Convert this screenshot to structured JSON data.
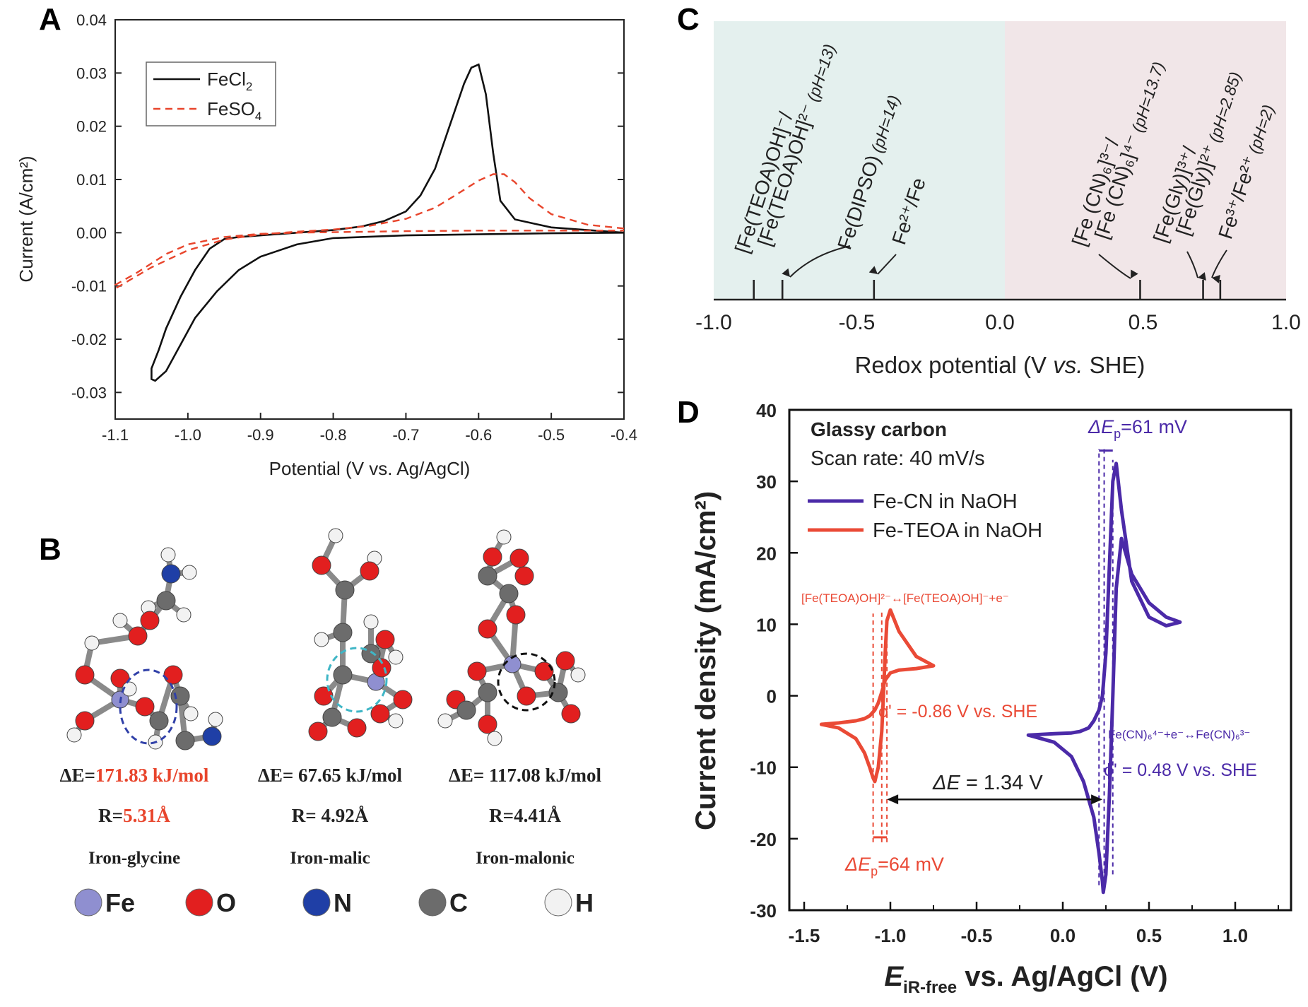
{
  "panels": {
    "a": "A",
    "b": "B",
    "c": "C",
    "d": "D"
  },
  "colors": {
    "black": "#111111",
    "red_dash": "#e8452c",
    "red": "#ea4a36",
    "purple": "#4b2aa8",
    "teal_bg": "#e4f0ee",
    "pink_bg": "#f1e6e8"
  },
  "chart_data": [
    {
      "id": "A",
      "type": "line",
      "xlabel": "Potential (V vs. Ag/AgCl)",
      "ylabel": "Current (A/cm²)",
      "xlim": [
        -1.1,
        -0.4
      ],
      "ylim": [
        -0.035,
        0.04
      ],
      "xticks": [
        "-1.1",
        "-1.0",
        "-0.9",
        "-0.8",
        "-0.7",
        "-0.6",
        "-0.5",
        "-0.4"
      ],
      "yticks": [
        "0.04",
        "0.03",
        "0.02",
        "0.01",
        "0.00",
        "-0.01",
        "-0.02",
        "-0.03"
      ],
      "legend_position": "top-left",
      "series": [
        {
          "name": "FeCl",
          "name_sub": "2",
          "style": "solid",
          "x": [
            -0.4,
            -0.45,
            -0.5,
            -0.55,
            -0.57,
            -0.58,
            -0.59,
            -0.6,
            -0.61,
            -0.62,
            -0.64,
            -0.66,
            -0.68,
            -0.7,
            -0.73,
            -0.76,
            -0.8,
            -0.85,
            -0.9,
            -0.93,
            -0.95,
            -0.97,
            -0.99,
            -1.01,
            -1.03,
            -1.04,
            -1.05,
            -1.05,
            -1.045,
            -1.03,
            -1.01,
            -0.99,
            -0.96,
            -0.93,
            -0.9,
            -0.85,
            -0.8,
            -0.7,
            -0.6,
            -0.5,
            -0.4
          ],
          "y": [
            0.0,
            0.0005,
            0.001,
            0.0025,
            0.006,
            0.015,
            0.026,
            0.0316,
            0.031,
            0.028,
            0.02,
            0.012,
            0.007,
            0.004,
            0.0022,
            0.0012,
            0.0005,
            0.0,
            -0.0005,
            -0.0008,
            -0.0012,
            -0.003,
            -0.007,
            -0.012,
            -0.018,
            -0.022,
            -0.0255,
            -0.0275,
            -0.0278,
            -0.026,
            -0.021,
            -0.016,
            -0.011,
            -0.007,
            -0.0045,
            -0.0022,
            -0.001,
            -0.0005,
            -0.0003,
            -0.0001,
            0.0
          ]
        },
        {
          "name": "FeSO",
          "name_sub": "4",
          "style": "dashed",
          "x": [
            -0.4,
            -0.45,
            -0.5,
            -0.53,
            -0.55,
            -0.565,
            -0.58,
            -0.6,
            -0.63,
            -0.66,
            -0.7,
            -0.75,
            -0.8,
            -0.85,
            -0.9,
            -0.95,
            -1.0,
            -1.05,
            -1.1,
            -1.1,
            -1.07,
            -1.03,
            -1.0,
            -0.95,
            -0.9,
            -0.85,
            -0.8,
            -0.7,
            -0.6,
            -0.5,
            -0.4
          ],
          "y": [
            0.0008,
            0.0015,
            0.0035,
            0.0065,
            0.0095,
            0.011,
            0.011,
            0.0098,
            0.0072,
            0.0047,
            0.0026,
            0.0013,
            0.0006,
            0.0002,
            -0.0003,
            -0.0013,
            -0.0033,
            -0.0065,
            -0.0105,
            -0.0098,
            -0.0075,
            -0.004,
            -0.0022,
            -0.0008,
            -0.0002,
            0.0,
            0.0001,
            0.0003,
            0.0004,
            0.0004,
            0.0004
          ]
        }
      ]
    },
    {
      "id": "C",
      "type": "scatter",
      "xlabel_parts": [
        "Redox potential (V ",
        "vs.",
        " SHE)"
      ],
      "xlim": [
        -1.0,
        1.0
      ],
      "xticks": [
        "-1.0",
        "-0.5",
        "0.0",
        "0.5",
        "1.0"
      ],
      "markers": [
        {
          "x": -0.86,
          "label_main": "[Fe(TEOA)OH]⁻/",
          "label_second": "[Fe(TEOA)OH]²⁻",
          "label_note": "(pH=13)"
        },
        {
          "x": -0.76,
          "label_main": "Fe(DIPSO)",
          "label_second": "",
          "label_note": "(pH=14)"
        },
        {
          "x": -0.44,
          "label_main": "Fe²⁺/Fe",
          "label_second": "",
          "label_note": ""
        },
        {
          "x": 0.49,
          "label_main": "[Fe (CN)₆]³⁻/",
          "label_second": "[Fe (CN)₆]⁴⁻",
          "label_note": "(pH=13.7)"
        },
        {
          "x": 0.71,
          "label_main": "[Fe(Gly)]³⁺/",
          "label_second": "[Fe(Gly)]²⁺",
          "label_note": "(pH=2.85)"
        },
        {
          "x": 0.77,
          "label_main": "Fe³⁺/Fe²⁺",
          "label_second": "",
          "label_note": "(pH=2)"
        }
      ]
    },
    {
      "id": "D",
      "type": "line",
      "xlabel_main": "E",
      "xlabel_sub": "iR-free",
      "xlabel_rest": " vs. Ag/AgCl (V)",
      "ylabel": "Current density (mA/cm²)",
      "xlim": [
        -1.6,
        1.3
      ],
      "ylim": [
        -30,
        40
      ],
      "xticks": [
        "-1.5",
        "-1.0",
        "-0.5",
        "0.0",
        "0.5",
        "1.0"
      ],
      "yticks": [
        "40",
        "30",
        "20",
        "10",
        "0",
        "-10",
        "-20",
        "-30"
      ],
      "info": [
        "Glassy carbon",
        "Scan rate: 40 mV/s"
      ],
      "series": [
        {
          "name": "Fe-CN in NaOH",
          "color": "purple",
          "x": [
            -0.2,
            -0.05,
            0.05,
            0.12,
            0.18,
            0.21,
            0.23,
            0.235,
            0.25,
            0.27,
            0.29,
            0.31,
            0.34,
            0.4,
            0.5,
            0.6,
            0.68,
            0.6,
            0.5,
            0.4,
            0.34,
            0.31,
            0.29,
            0.27,
            0.25,
            0.23,
            0.21,
            0.18,
            0.15,
            0.1,
            0.05,
            -0.05,
            -0.2
          ],
          "y": [
            -5.5,
            -6.5,
            -8.5,
            -12,
            -17,
            -22,
            -26,
            -27.5,
            -25,
            -14,
            0,
            15,
            22,
            17,
            13,
            11,
            10.3,
            9.8,
            11,
            16,
            26,
            32.5,
            30,
            18,
            6,
            0,
            -2,
            -3.5,
            -4.5,
            -5,
            -5.2,
            -5.3,
            -5.5
          ]
        },
        {
          "name": "Fe-TEOA in NaOH",
          "color": "red",
          "x": [
            -1.4,
            -1.3,
            -1.2,
            -1.15,
            -1.12,
            -1.1,
            -1.09,
            -1.07,
            -1.05,
            -1.04,
            -1.03,
            -1.02,
            -1.0,
            -0.95,
            -0.85,
            -0.75,
            -0.85,
            -0.95,
            -1.0,
            -1.03,
            -1.05,
            -1.07,
            -1.09,
            -1.12,
            -1.15,
            -1.2,
            -1.3,
            -1.4
          ],
          "y": [
            -4,
            -4.5,
            -6,
            -8,
            -10,
            -11.5,
            -12,
            -10,
            -5,
            0,
            6,
            10.5,
            12,
            9,
            5.5,
            4.2,
            3.8,
            3.6,
            3.2,
            2.2,
            0.5,
            -1,
            -2,
            -2.8,
            -3.2,
            -3.5,
            -3.8,
            -4
          ]
        }
      ],
      "annotations": {
        "dep_top": "ΔE",
        "dep_top_sub": "p",
        "dep_top_val": "=61 mV",
        "dep_bot": "ΔE",
        "dep_bot_sub": "p",
        "dep_bot_val": "=64 mV",
        "de_label": "ΔE",
        "de_val": " = 1.34 V",
        "phi_red": "ϕ' = -0.86 V vs. SHE",
        "phi_blue": "ϕ' = 0.48 V vs. SHE",
        "rxn_red": "[Fe(TEOA)OH]²⁻↔[Fe(TEOA)OH]⁻+e⁻",
        "rxn_blue": "Fe(CN)₆⁴⁻+e⁻↔Fe(CN)₆³⁻"
      }
    }
  ],
  "molecules": [
    {
      "de_label": "ΔE=",
      "de_value": "171.83 kJ/mol",
      "r_label": "R=",
      "r_value": "5.31Å",
      "name": "Iron-glycine",
      "highlight": true
    },
    {
      "de_label": "ΔE= ",
      "de_value": "67.65 kJ/mol",
      "r_label": "R= ",
      "r_value": "4.92Å",
      "name": "Iron-malic",
      "highlight": false
    },
    {
      "de_label": "ΔE= ",
      "de_value": "117.08 kJ/mol",
      "r_label": "R=",
      "r_value": "4.41Å",
      "name": "Iron-malonic",
      "highlight": false
    }
  ],
  "atom_legend": [
    {
      "symbol": "Fe",
      "color": "#8f8fd0"
    },
    {
      "symbol": "O",
      "color": "#e21f1f"
    },
    {
      "symbol": "N",
      "color": "#1f3fa6"
    },
    {
      "symbol": "C",
      "color": "#6c6c6c"
    },
    {
      "symbol": "H",
      "color": "#f2f2f2"
    }
  ]
}
